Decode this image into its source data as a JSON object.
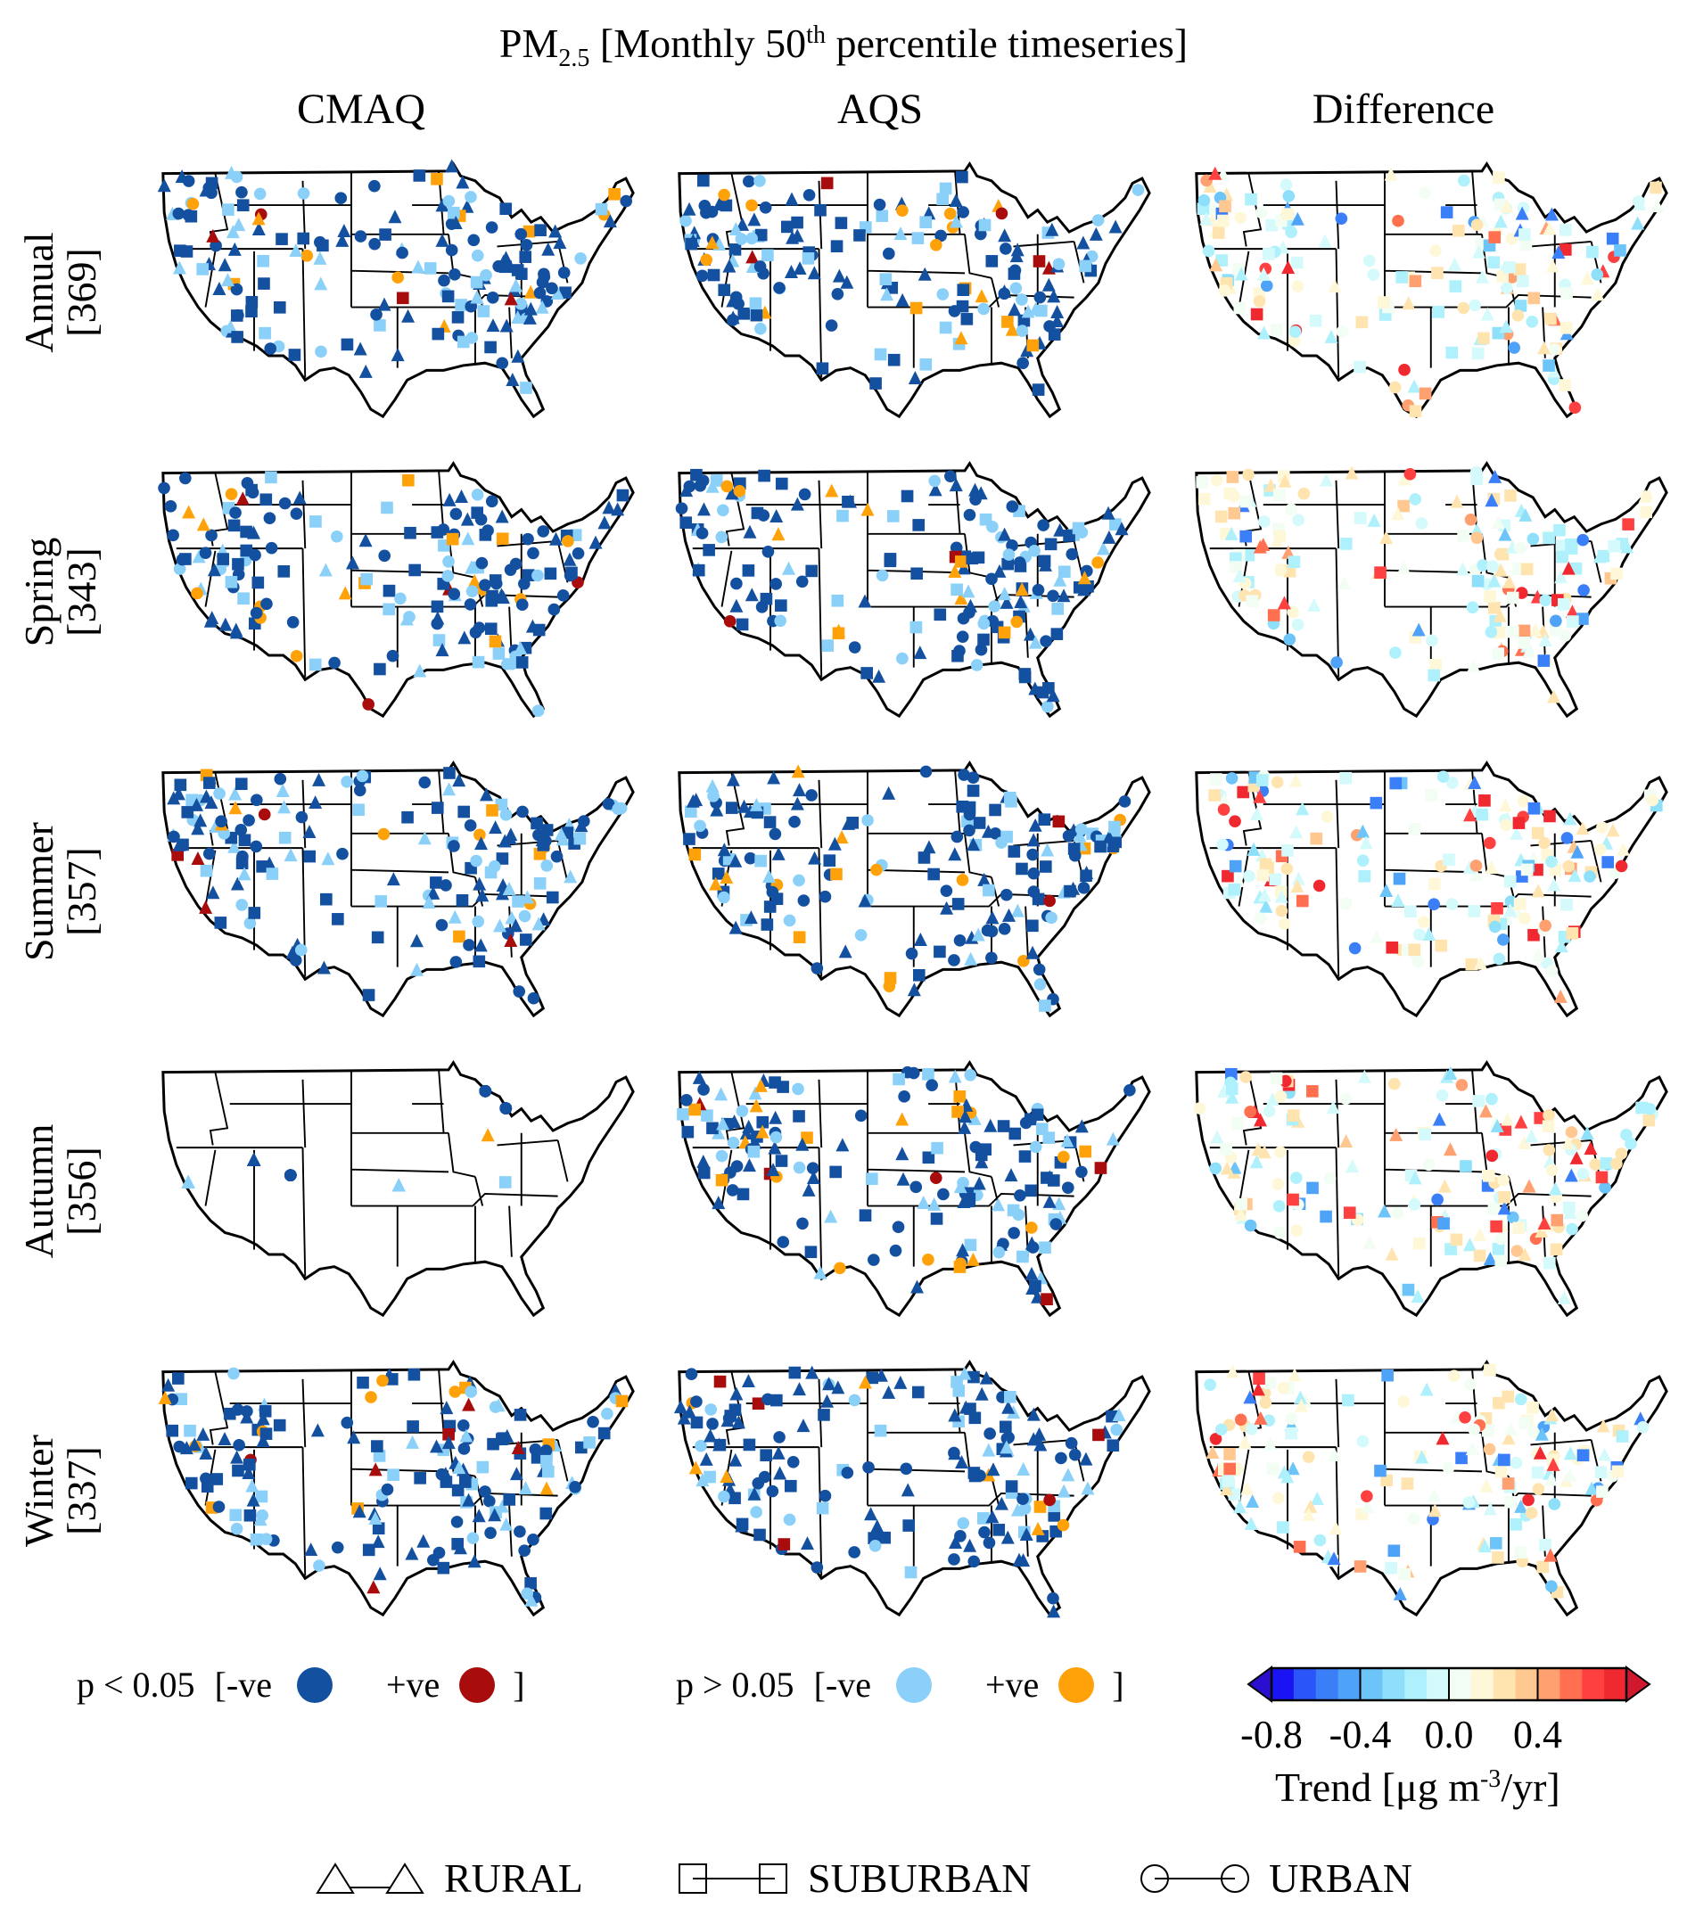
{
  "title": {
    "pre": "PM",
    "sub": "2.5",
    "mid": " [Monthly 50",
    "sup": "th",
    "post": " percentile timeseries]"
  },
  "columns": [
    "CMAQ",
    "AQS",
    "Difference"
  ],
  "rows": [
    {
      "season": "Annual",
      "count": "[369]"
    },
    {
      "season": "Spring",
      "count": "[343]"
    },
    {
      "season": "Summer",
      "count": "[357]"
    },
    {
      "season": "Autumn",
      "count": "[356]"
    },
    {
      "season": "Winter",
      "count": "[337]"
    }
  ],
  "significance_legend": [
    {
      "label": "p < 0.05",
      "open": "[",
      "neg": "-ve",
      "pos": "+ve",
      "close": "]",
      "neg_color": "#1450a0",
      "pos_color": "#a80c0c"
    },
    {
      "label": "p > 0.05",
      "open": "[",
      "neg": "-ve",
      "pos": "+ve",
      "close": "]",
      "neg_color": "#8ad0f8",
      "pos_color": "#ffa20a"
    }
  ],
  "colorbar": {
    "ticks": [
      "-0.8",
      "-0.4",
      "0.0",
      "0.4"
    ],
    "tick_values": [
      -0.8,
      -0.4,
      0.0,
      0.4
    ],
    "range": [
      -0.8,
      0.8
    ],
    "under_color": "#2a0fd0",
    "over_color": "#d0182e",
    "colors": [
      "#1a14f5",
      "#2a55f8",
      "#3a7ef8",
      "#4ea2f8",
      "#6cc4f8",
      "#8ee0fa",
      "#aef0fb",
      "#d4fafb",
      "#f2fdf3",
      "#fff8d8",
      "#ffe4b0",
      "#ffc890",
      "#ffa070",
      "#ff6f50",
      "#ff4040",
      "#f02830"
    ],
    "label_pre": "Trend [μg m",
    "label_sup": "-3",
    "label_post": "/yr]"
  },
  "site_types": [
    "RURAL",
    "SUBURBAN",
    "URBAN"
  ]
}
